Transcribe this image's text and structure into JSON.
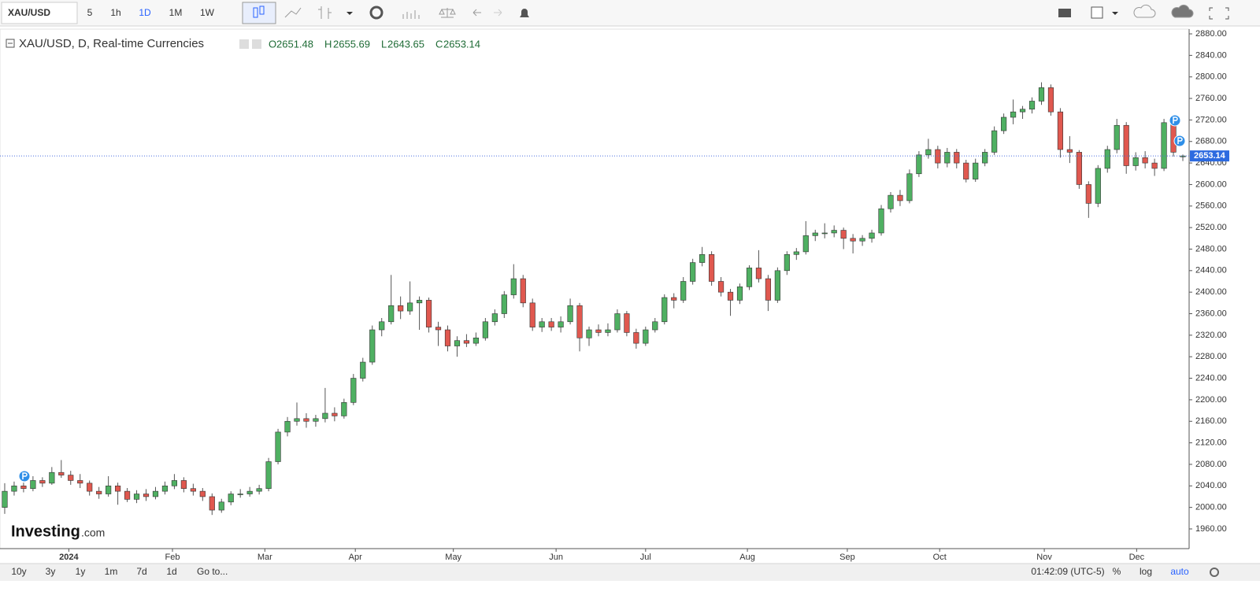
{
  "toolbar": {
    "symbol": "XAU/USD",
    "intervals": [
      "5",
      "1h",
      "1D",
      "1M",
      "1W"
    ]
  },
  "chart_data": {
    "type": "candlestick",
    "title": "XAU/USD, D, Real-time Currencies",
    "ohlc_labels": [
      "O",
      "H",
      "L",
      "C"
    ],
    "up_color": "#4fb062",
    "down_color": "#e0584f",
    "grid": false,
    "candles": [
      [
        2000,
        2045,
        1988,
        2030
      ],
      [
        2030,
        2048,
        2022,
        2040
      ],
      [
        2040,
        2046,
        2028,
        2035
      ],
      [
        2035,
        2058,
        2030,
        2050
      ],
      [
        2050,
        2056,
        2038,
        2045
      ],
      [
        2045,
        2075,
        2042,
        2065
      ],
      [
        2065,
        2088,
        2055,
        2060
      ],
      [
        2060,
        2068,
        2042,
        2050
      ],
      [
        2050,
        2062,
        2036,
        2045
      ],
      [
        2045,
        2050,
        2022,
        2030
      ],
      [
        2030,
        2038,
        2016,
        2025
      ],
      [
        2025,
        2058,
        2020,
        2040
      ],
      [
        2040,
        2046,
        2005,
        2030
      ],
      [
        2030,
        2036,
        2010,
        2015
      ],
      [
        2015,
        2032,
        2008,
        2025
      ],
      [
        2025,
        2034,
        2012,
        2020
      ],
      [
        2020,
        2038,
        2015,
        2030
      ],
      [
        2030,
        2048,
        2024,
        2040
      ],
      [
        2040,
        2062,
        2034,
        2050
      ],
      [
        2050,
        2056,
        2028,
        2035
      ],
      [
        2035,
        2044,
        2022,
        2030
      ],
      [
        2030,
        2036,
        2012,
        2020
      ],
      [
        2020,
        2026,
        1986,
        1995
      ],
      [
        1995,
        2016,
        1990,
        2010
      ],
      [
        2010,
        2030,
        2004,
        2025
      ],
      [
        2025,
        2034,
        2018,
        2025
      ],
      [
        2025,
        2038,
        2020,
        2030
      ],
      [
        2030,
        2042,
        2024,
        2035
      ],
      [
        2035,
        2092,
        2030,
        2085
      ],
      [
        2085,
        2146,
        2080,
        2140
      ],
      [
        2140,
        2168,
        2132,
        2160
      ],
      [
        2160,
        2195,
        2152,
        2165
      ],
      [
        2165,
        2175,
        2148,
        2160
      ],
      [
        2160,
        2172,
        2150,
        2165
      ],
      [
        2165,
        2222,
        2158,
        2175
      ],
      [
        2175,
        2186,
        2160,
        2170
      ],
      [
        2170,
        2202,
        2165,
        2195
      ],
      [
        2195,
        2248,
        2190,
        2240
      ],
      [
        2240,
        2278,
        2234,
        2270
      ],
      [
        2270,
        2338,
        2265,
        2330
      ],
      [
        2330,
        2352,
        2318,
        2345
      ],
      [
        2345,
        2432,
        2340,
        2375
      ],
      [
        2375,
        2392,
        2350,
        2365
      ],
      [
        2365,
        2420,
        2358,
        2380
      ],
      [
        2380,
        2392,
        2330,
        2385
      ],
      [
        2385,
        2390,
        2325,
        2335
      ],
      [
        2335,
        2345,
        2300,
        2330
      ],
      [
        2330,
        2338,
        2290,
        2300
      ],
      [
        2300,
        2318,
        2280,
        2310
      ],
      [
        2310,
        2322,
        2298,
        2305
      ],
      [
        2305,
        2325,
        2300,
        2315
      ],
      [
        2315,
        2352,
        2310,
        2345
      ],
      [
        2345,
        2368,
        2338,
        2360
      ],
      [
        2360,
        2402,
        2352,
        2395
      ],
      [
        2395,
        2452,
        2388,
        2425
      ],
      [
        2425,
        2432,
        2372,
        2380
      ],
      [
        2380,
        2388,
        2328,
        2335
      ],
      [
        2335,
        2352,
        2326,
        2345
      ],
      [
        2345,
        2352,
        2328,
        2335
      ],
      [
        2335,
        2355,
        2325,
        2345
      ],
      [
        2345,
        2388,
        2340,
        2375
      ],
      [
        2375,
        2380,
        2290,
        2315
      ],
      [
        2315,
        2336,
        2300,
        2330
      ],
      [
        2330,
        2340,
        2318,
        2325
      ],
      [
        2325,
        2342,
        2318,
        2330
      ],
      [
        2330,
        2368,
        2325,
        2360
      ],
      [
        2360,
        2365,
        2318,
        2325
      ],
      [
        2325,
        2332,
        2295,
        2305
      ],
      [
        2305,
        2336,
        2300,
        2330
      ],
      [
        2330,
        2352,
        2325,
        2345
      ],
      [
        2345,
        2396,
        2340,
        2390
      ],
      [
        2390,
        2398,
        2370,
        2385
      ],
      [
        2385,
        2428,
        2380,
        2420
      ],
      [
        2420,
        2462,
        2414,
        2455
      ],
      [
        2455,
        2484,
        2448,
        2470
      ],
      [
        2470,
        2476,
        2412,
        2420
      ],
      [
        2420,
        2428,
        2392,
        2400
      ],
      [
        2400,
        2406,
        2356,
        2385
      ],
      [
        2385,
        2416,
        2378,
        2410
      ],
      [
        2410,
        2450,
        2404,
        2445
      ],
      [
        2445,
        2478,
        2418,
        2425
      ],
      [
        2425,
        2432,
        2365,
        2385
      ],
      [
        2385,
        2446,
        2380,
        2440
      ],
      [
        2440,
        2476,
        2432,
        2470
      ],
      [
        2470,
        2482,
        2460,
        2475
      ],
      [
        2475,
        2532,
        2470,
        2505
      ],
      [
        2505,
        2516,
        2495,
        2510
      ],
      [
        2510,
        2528,
        2500,
        2510
      ],
      [
        2510,
        2524,
        2502,
        2515
      ],
      [
        2515,
        2520,
        2480,
        2500
      ],
      [
        2500,
        2508,
        2472,
        2495
      ],
      [
        2495,
        2506,
        2486,
        2500
      ],
      [
        2500,
        2516,
        2492,
        2510
      ],
      [
        2510,
        2562,
        2505,
        2555
      ],
      [
        2555,
        2586,
        2548,
        2580
      ],
      [
        2580,
        2590,
        2560,
        2570
      ],
      [
        2570,
        2628,
        2565,
        2620
      ],
      [
        2620,
        2662,
        2614,
        2655
      ],
      [
        2655,
        2685,
        2648,
        2665
      ],
      [
        2665,
        2672,
        2630,
        2640
      ],
      [
        2640,
        2668,
        2632,
        2660
      ],
      [
        2660,
        2666,
        2630,
        2640
      ],
      [
        2640,
        2646,
        2604,
        2610
      ],
      [
        2610,
        2648,
        2605,
        2640
      ],
      [
        2640,
        2666,
        2634,
        2660
      ],
      [
        2660,
        2708,
        2655,
        2700
      ],
      [
        2700,
        2732,
        2694,
        2725
      ],
      [
        2725,
        2758,
        2712,
        2735
      ],
      [
        2735,
        2746,
        2722,
        2740
      ],
      [
        2740,
        2762,
        2732,
        2755
      ],
      [
        2755,
        2790,
        2748,
        2780
      ],
      [
        2780,
        2786,
        2728,
        2735
      ],
      [
        2735,
        2742,
        2650,
        2665
      ],
      [
        2665,
        2690,
        2640,
        2660
      ],
      [
        2660,
        2664,
        2592,
        2600
      ],
      [
        2600,
        2606,
        2538,
        2565
      ],
      [
        2565,
        2636,
        2558,
        2630
      ],
      [
        2630,
        2672,
        2622,
        2665
      ],
      [
        2665,
        2722,
        2658,
        2710
      ],
      [
        2710,
        2716,
        2620,
        2635
      ],
      [
        2635,
        2660,
        2626,
        2650
      ],
      [
        2650,
        2662,
        2630,
        2640
      ],
      [
        2640,
        2648,
        2616,
        2630
      ],
      [
        2630,
        2722,
        2625,
        2715
      ],
      [
        2715,
        2724,
        2652,
        2660
      ],
      [
        2651.48,
        2655.69,
        2643.65,
        2653.14
      ]
    ],
    "xlim": [
      0,
      126
    ],
    "xticks": [
      {
        "value": 7.3,
        "label": "2024"
      },
      {
        "value": 18.3,
        "label": "Feb"
      },
      {
        "value": 28.1,
        "label": "Mar"
      },
      {
        "value": 37.7,
        "label": "Apr"
      },
      {
        "value": 48.1,
        "label": "May"
      },
      {
        "value": 59,
        "label": "Jun"
      },
      {
        "value": 68.5,
        "label": "Jul"
      },
      {
        "value": 79.3,
        "label": "Aug"
      },
      {
        "value": 89.9,
        "label": "Sep"
      },
      {
        "value": 99.7,
        "label": "Oct"
      },
      {
        "value": 110.8,
        "label": "Nov"
      },
      {
        "value": 120.6,
        "label": "Dec"
      }
    ],
    "ylim": [
      1923.4,
      2888.8
    ],
    "yticks": [
      {
        "value": 1960,
        "label": "1960.00"
      },
      {
        "value": 2000,
        "label": "2000.00"
      },
      {
        "value": 2040,
        "label": "2040.00"
      },
      {
        "value": 2080,
        "label": "2080.00"
      },
      {
        "value": 2120,
        "label": "2120.00"
      },
      {
        "value": 2160,
        "label": "2160.00"
      },
      {
        "value": 2200,
        "label": "2200.00"
      },
      {
        "value": 2240,
        "label": "2240.00"
      },
      {
        "value": 2280,
        "label": "2280.00"
      },
      {
        "value": 2320,
        "label": "2320.00"
      },
      {
        "value": 2360,
        "label": "2360.00"
      },
      {
        "value": 2400,
        "label": "2400.00"
      },
      {
        "value": 2440,
        "label": "2440.00"
      },
      {
        "value": 2480,
        "label": "2480.00"
      },
      {
        "value": 2520,
        "label": "2520.00"
      },
      {
        "value": 2560,
        "label": "2560.00"
      },
      {
        "value": 2600,
        "label": "2600.00"
      },
      {
        "value": 2640,
        "label": "2640.00"
      },
      {
        "value": 2680,
        "label": "2680.00"
      },
      {
        "value": 2720,
        "label": "2720.00"
      },
      {
        "value": 2760,
        "label": "2760.00"
      },
      {
        "value": 2800,
        "label": "2800.00"
      },
      {
        "value": 2840,
        "label": "2840.00"
      },
      {
        "value": 2880,
        "label": "2880.00"
      }
    ]
  },
  "watermark": {
    "brand": "Investing",
    "suffix": ".com"
  },
  "footer": {
    "ranges": [
      "10y",
      "3y",
      "1y",
      "1m",
      "7d",
      "1d"
    ],
    "goto": "Go to...",
    "time": "01:42:09 (UTC-5)",
    "options": [
      "%",
      "log",
      "auto"
    ]
  }
}
